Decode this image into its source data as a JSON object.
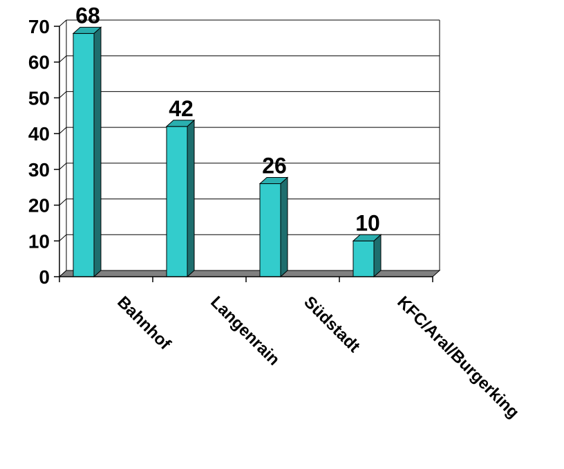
{
  "chart_data": {
    "type": "bar",
    "style": "3d",
    "categories": [
      "Bahnhof",
      "Langenrain",
      "Südstadt",
      "KFC/Aral/Burgerking"
    ],
    "values": [
      68,
      42,
      26,
      10
    ],
    "data_labels": [
      "68",
      "42",
      "26",
      "10"
    ],
    "ylim": [
      0,
      70
    ],
    "y_ticks": [
      0,
      10,
      20,
      30,
      40,
      50,
      60,
      70
    ],
    "y_tick_labels": [
      "0",
      "10",
      "20",
      "30",
      "40",
      "50",
      "60",
      "70"
    ],
    "grid": true,
    "legend": "none",
    "colors": {
      "bar_front": "#33CCCC",
      "bar_side": "#1E6E6E",
      "bar_top": "#2AAFAF",
      "floor": "#808080",
      "grid": "#000000"
    }
  }
}
